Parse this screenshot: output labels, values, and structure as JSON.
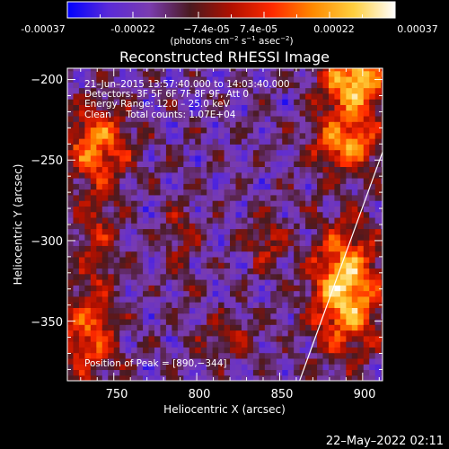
{
  "chart_data": {
    "type": "heatmap",
    "title": "Reconstructed RHESSI Image",
    "xlabel": "Heliocentric X (arcsec)",
    "ylabel": "Heliocentric Y (arcsec)",
    "xlim": [
      722,
      912
    ],
    "ylim": [
      -387,
      -193
    ],
    "x_ticks": [
      750,
      800,
      850,
      900
    ],
    "y_ticks": [
      -200,
      -250,
      -300,
      -350
    ],
    "x_tick_labels": [
      "750",
      "800",
      "850",
      "900"
    ],
    "y_tick_labels": [
      "−200",
      "−250",
      "−300",
      "−350"
    ],
    "colorbar": {
      "range": [
        -0.00037,
        0.00037
      ],
      "tick_labels": [
        "-0.00037",
        "-0.00022",
        "−7.4e-05",
        "7.4e-05",
        "0.00022",
        "0.00037"
      ],
      "unit_parts": [
        "(photons cm",
        "−2",
        " s",
        "−1",
        " asec",
        "−2",
        ")"
      ],
      "colors": [
        "#0000ff",
        "#5a2ad8",
        "#7a3cb0",
        "#4a1a20",
        "#b01000",
        "#ff2a00",
        "#ff8a00",
        "#ffd040",
        "#ffffff"
      ]
    },
    "annotations": [
      "21–Jun–2015 13:57:40.000 to 14:03:40.000",
      "Detectors: 3F 5F 6F 7F 8F 9F, Att 0",
      "Energy Range: 12.0 – 25.0 keV",
      "Clean     Total counts: 1.07E+04"
    ],
    "peak_label": "Position of Peak = [890,−344]",
    "peak": [
      890,
      -344
    ],
    "limb_line": [
      [
        862,
        -387
      ],
      [
        912,
        -245
      ]
    ],
    "intensity_regions": [
      {
        "x": 895,
        "y": -200,
        "sx": 14,
        "sy": 16,
        "amp": 1.0
      },
      {
        "x": 890,
        "y": -240,
        "sx": 14,
        "sy": 12,
        "amp": 0.75
      },
      {
        "x": 890,
        "y": -330,
        "sx": 14,
        "sy": 26,
        "amp": 1.05
      },
      {
        "x": 740,
        "y": -240,
        "sx": 14,
        "sy": 16,
        "amp": 0.7
      },
      {
        "x": 735,
        "y": -360,
        "sx": 12,
        "sy": 18,
        "amp": 0.6
      },
      {
        "x": 842,
        "y": -300,
        "sx": 8,
        "sy": 12,
        "amp": 0.4
      },
      {
        "x": 790,
        "y": -295,
        "sx": 8,
        "sy": 20,
        "amp": 0.25
      },
      {
        "x": 820,
        "y": -360,
        "sx": 14,
        "sy": 10,
        "amp": 0.3
      },
      {
        "x": 740,
        "y": -300,
        "sx": 10,
        "sy": 30,
        "amp": 0.35
      }
    ]
  },
  "footer": {
    "timestamp": "22–May–2022 02:11"
  }
}
